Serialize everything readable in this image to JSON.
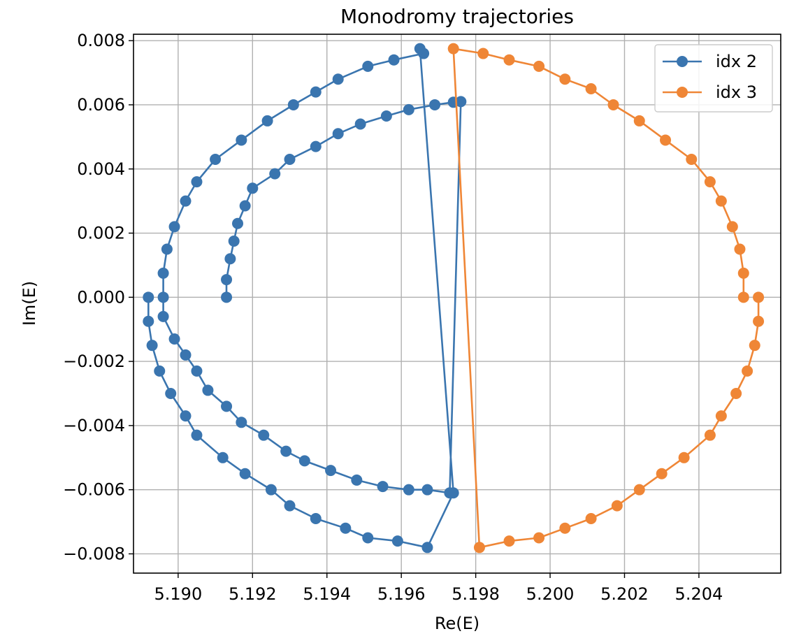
{
  "chart_data": {
    "type": "line",
    "title": "Monodromy trajectories",
    "xlabel": "Re(E)",
    "ylabel": "Im(E)",
    "xlim": [
      5.1888,
      5.2062
    ],
    "ylim": [
      -0.0086,
      0.0082
    ],
    "xticks": [
      {
        "value": 5.19,
        "label": "5.190"
      },
      {
        "value": 5.192,
        "label": "5.192"
      },
      {
        "value": 5.194,
        "label": "5.194"
      },
      {
        "value": 5.196,
        "label": "5.196"
      },
      {
        "value": 5.198,
        "label": "5.198"
      },
      {
        "value": 5.2,
        "label": "5.200"
      },
      {
        "value": 5.202,
        "label": "5.202"
      },
      {
        "value": 5.204,
        "label": "5.204"
      }
    ],
    "yticks": [
      {
        "value": -0.008,
        "label": "−0.008"
      },
      {
        "value": -0.006,
        "label": "−0.006"
      },
      {
        "value": -0.004,
        "label": "−0.004"
      },
      {
        "value": -0.002,
        "label": "−0.002"
      },
      {
        "value": 0.0,
        "label": "0.000"
      },
      {
        "value": 0.002,
        "label": "0.002"
      },
      {
        "value": 0.004,
        "label": "0.004"
      },
      {
        "value": 0.006,
        "label": "0.006"
      },
      {
        "value": 0.008,
        "label": "0.008"
      }
    ],
    "grid": true,
    "legend_position": "top-right",
    "series": [
      {
        "name": "idx 2",
        "color": "#3a75af",
        "marker": "circle",
        "points": [
          [
            5.1913,
            0
          ],
          [
            5.1913,
            0.00055
          ],
          [
            5.1914,
            0.0012
          ],
          [
            5.1915,
            0.00175
          ],
          [
            5.1916,
            0.0023
          ],
          [
            5.1918,
            0.00285
          ],
          [
            5.192,
            0.0034
          ],
          [
            5.1926,
            0.00385
          ],
          [
            5.193,
            0.0043
          ],
          [
            5.1937,
            0.0047
          ],
          [
            5.1943,
            0.0051
          ],
          [
            5.1949,
            0.0054
          ],
          [
            5.1956,
            0.00565
          ],
          [
            5.1962,
            0.00585
          ],
          [
            5.1969,
            0.006
          ],
          [
            5.1974,
            0.00608
          ],
          [
            5.1976,
            0.0061
          ],
          [
            5.1973,
            -0.0061
          ],
          [
            5.1967,
            -0.006
          ],
          [
            5.1962,
            -0.006
          ],
          [
            5.1955,
            -0.0059
          ],
          [
            5.1948,
            -0.0057
          ],
          [
            5.1941,
            -0.0054
          ],
          [
            5.1934,
            -0.0051
          ],
          [
            5.1929,
            -0.0048
          ],
          [
            5.1923,
            -0.0043
          ],
          [
            5.1917,
            -0.0039
          ],
          [
            5.1913,
            -0.0034
          ],
          [
            5.1908,
            -0.0029
          ],
          [
            5.1905,
            -0.0023
          ],
          [
            5.1902,
            -0.0018
          ],
          [
            5.1899,
            -0.0013
          ],
          [
            5.1896,
            -0.0006
          ],
          [
            5.1896,
            0
          ],
          [
            5.1896,
            0.00075
          ],
          [
            5.1897,
            0.0015
          ],
          [
            5.1899,
            0.0022
          ],
          [
            5.1902,
            0.003
          ],
          [
            5.1905,
            0.0036
          ],
          [
            5.191,
            0.0043
          ],
          [
            5.1917,
            0.0049
          ],
          [
            5.1924,
            0.0055
          ],
          [
            5.1931,
            0.006
          ],
          [
            5.1937,
            0.0064
          ],
          [
            5.1943,
            0.0068
          ],
          [
            5.1951,
            0.0072
          ],
          [
            5.1958,
            0.0074
          ],
          [
            5.1966,
            0.0076
          ],
          [
            5.1965,
            0.00775
          ],
          [
            5.1974,
            -0.0061
          ],
          [
            5.1967,
            -0.0078
          ],
          [
            5.1959,
            -0.0076
          ],
          [
            5.1951,
            -0.0075
          ],
          [
            5.1945,
            -0.0072
          ],
          [
            5.1937,
            -0.0069
          ],
          [
            5.193,
            -0.0065
          ],
          [
            5.1925,
            -0.006
          ],
          [
            5.1918,
            -0.0055
          ],
          [
            5.1912,
            -0.005
          ],
          [
            5.1905,
            -0.0043
          ],
          [
            5.1902,
            -0.0037
          ],
          [
            5.1898,
            -0.003
          ],
          [
            5.1895,
            -0.0023
          ],
          [
            5.1893,
            -0.0015
          ],
          [
            5.1892,
            -0.00075
          ],
          [
            5.1892,
            0
          ]
        ]
      },
      {
        "name": "idx 3",
        "color": "#ef8636",
        "marker": "circle",
        "points": [
          [
            5.2052,
            0
          ],
          [
            5.2052,
            0.00075
          ],
          [
            5.2051,
            0.0015
          ],
          [
            5.2049,
            0.0022
          ],
          [
            5.2046,
            0.003
          ],
          [
            5.2043,
            0.0036
          ],
          [
            5.2038,
            0.0043
          ],
          [
            5.2031,
            0.0049
          ],
          [
            5.2024,
            0.0055
          ],
          [
            5.2017,
            0.006
          ],
          [
            5.2011,
            0.0065
          ],
          [
            5.2004,
            0.0068
          ],
          [
            5.1997,
            0.0072
          ],
          [
            5.1989,
            0.0074
          ],
          [
            5.1982,
            0.0076
          ],
          [
            5.1974,
            0.00775
          ],
          [
            5.1981,
            -0.0078
          ],
          [
            5.1989,
            -0.0076
          ],
          [
            5.1997,
            -0.0075
          ],
          [
            5.2004,
            -0.0072
          ],
          [
            5.2011,
            -0.0069
          ],
          [
            5.2018,
            -0.0065
          ],
          [
            5.2024,
            -0.006
          ],
          [
            5.203,
            -0.0055
          ],
          [
            5.2036,
            -0.005
          ],
          [
            5.2043,
            -0.0043
          ],
          [
            5.2046,
            -0.0037
          ],
          [
            5.205,
            -0.003
          ],
          [
            5.2053,
            -0.0023
          ],
          [
            5.2055,
            -0.0015
          ],
          [
            5.2056,
            -0.00075
          ],
          [
            5.2056,
            0
          ]
        ]
      }
    ]
  }
}
